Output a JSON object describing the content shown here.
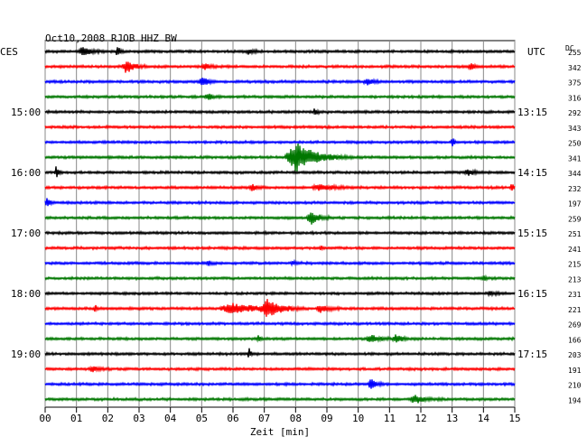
{
  "header": {
    "title": "Oct10,2008   RJOB HHZ BW",
    "left_zone": "CES",
    "right_zone": "UTC",
    "dc_label": "DC"
  },
  "chart_data": {
    "type": "line",
    "title": "Oct10,2008   RJOB HHZ BW",
    "xlabel": "Zeit [min]",
    "xlim": [
      0,
      15
    ],
    "x_ticks": [
      "00",
      "01",
      "02",
      "03",
      "04",
      "05",
      "06",
      "07",
      "08",
      "09",
      "10",
      "11",
      "12",
      "13",
      "14",
      "15"
    ],
    "grid": true,
    "trace_interval_minutes": 15,
    "trace_colors": [
      "#000000",
      "#ff0000",
      "#0000ff",
      "#007700"
    ],
    "left_time_labels": [
      {
        "trace": 4,
        "label": "15:00"
      },
      {
        "trace": 8,
        "label": "16:00"
      },
      {
        "trace": 12,
        "label": "17:00"
      },
      {
        "trace": 16,
        "label": "18:00"
      },
      {
        "trace": 20,
        "label": "19:00"
      }
    ],
    "right_time_labels": [
      {
        "trace": 4,
        "label": "13:15"
      },
      {
        "trace": 8,
        "label": "14:15"
      },
      {
        "trace": 12,
        "label": "15:15"
      },
      {
        "trace": 16,
        "label": "16:15"
      },
      {
        "trace": 20,
        "label": "17:15"
      }
    ],
    "dc_offsets": [
      255,
      342,
      375,
      316,
      292,
      343,
      250,
      341,
      344,
      232,
      197,
      259,
      251,
      241,
      215,
      213,
      231,
      221,
      269,
      166,
      203,
      191,
      210,
      194
    ],
    "events": [
      {
        "trace": 0,
        "minute": 1.2,
        "amp": 0.5,
        "dur": 0.5
      },
      {
        "trace": 0,
        "minute": 2.3,
        "amp": 0.9,
        "dur": 0.15
      },
      {
        "trace": 0,
        "minute": 6.5,
        "amp": 0.35,
        "dur": 0.3
      },
      {
        "trace": 1,
        "minute": 2.6,
        "amp": 0.8,
        "dur": 0.5
      },
      {
        "trace": 1,
        "minute": 5.1,
        "amp": 0.3,
        "dur": 0.4
      },
      {
        "trace": 1,
        "minute": 13.6,
        "amp": 0.4,
        "dur": 0.3
      },
      {
        "trace": 2,
        "minute": 5.0,
        "amp": 0.7,
        "dur": 0.3
      },
      {
        "trace": 2,
        "minute": 10.3,
        "amp": 0.3,
        "dur": 0.5
      },
      {
        "trace": 3,
        "minute": 5.2,
        "amp": 0.4,
        "dur": 0.3
      },
      {
        "trace": 4,
        "minute": 8.6,
        "amp": 0.3,
        "dur": 0.2
      },
      {
        "trace": 6,
        "minute": 13.0,
        "amp": 0.9,
        "dur": 0.1
      },
      {
        "trace": 7,
        "minute": 8.0,
        "amp": 1.8,
        "dur": 1.2
      },
      {
        "trace": 8,
        "minute": 0.35,
        "amp": 1.0,
        "dur": 0.12
      },
      {
        "trace": 8,
        "minute": 13.5,
        "amp": 0.35,
        "dur": 0.4
      },
      {
        "trace": 9,
        "minute": 6.6,
        "amp": 0.4,
        "dur": 0.3
      },
      {
        "trace": 9,
        "minute": 8.8,
        "amp": 0.35,
        "dur": 1.0
      },
      {
        "trace": 9,
        "minute": 14.9,
        "amp": 0.7,
        "dur": 0.15
      },
      {
        "trace": 10,
        "minute": 0.05,
        "amp": 0.6,
        "dur": 0.2
      },
      {
        "trace": 11,
        "minute": 8.5,
        "amp": 0.8,
        "dur": 0.5
      },
      {
        "trace": 13,
        "minute": 8.8,
        "amp": 0.3,
        "dur": 0.1
      },
      {
        "trace": 14,
        "minute": 5.2,
        "amp": 0.3,
        "dur": 0.2
      },
      {
        "trace": 14,
        "minute": 7.9,
        "amp": 0.3,
        "dur": 0.2
      },
      {
        "trace": 15,
        "minute": 14.0,
        "amp": 0.5,
        "dur": 0.1
      },
      {
        "trace": 16,
        "minute": 14.2,
        "amp": 0.3,
        "dur": 0.3
      },
      {
        "trace": 17,
        "minute": 6.0,
        "amp": 0.55,
        "dur": 1.6
      },
      {
        "trace": 17,
        "minute": 7.1,
        "amp": 1.0,
        "dur": 0.8
      },
      {
        "trace": 17,
        "minute": 8.8,
        "amp": 0.45,
        "dur": 0.5
      },
      {
        "trace": 17,
        "minute": 1.6,
        "amp": 0.5,
        "dur": 0.1
      },
      {
        "trace": 19,
        "minute": 6.8,
        "amp": 0.5,
        "dur": 0.1
      },
      {
        "trace": 19,
        "minute": 10.4,
        "amp": 0.5,
        "dur": 0.6
      },
      {
        "trace": 19,
        "minute": 11.2,
        "amp": 0.45,
        "dur": 0.4
      },
      {
        "trace": 20,
        "minute": 6.5,
        "amp": 0.9,
        "dur": 0.1
      },
      {
        "trace": 21,
        "minute": 1.5,
        "amp": 0.35,
        "dur": 0.4
      },
      {
        "trace": 22,
        "minute": 10.4,
        "amp": 0.8,
        "dur": 0.3
      },
      {
        "trace": 23,
        "minute": 11.8,
        "amp": 0.5,
        "dur": 0.6
      }
    ]
  }
}
